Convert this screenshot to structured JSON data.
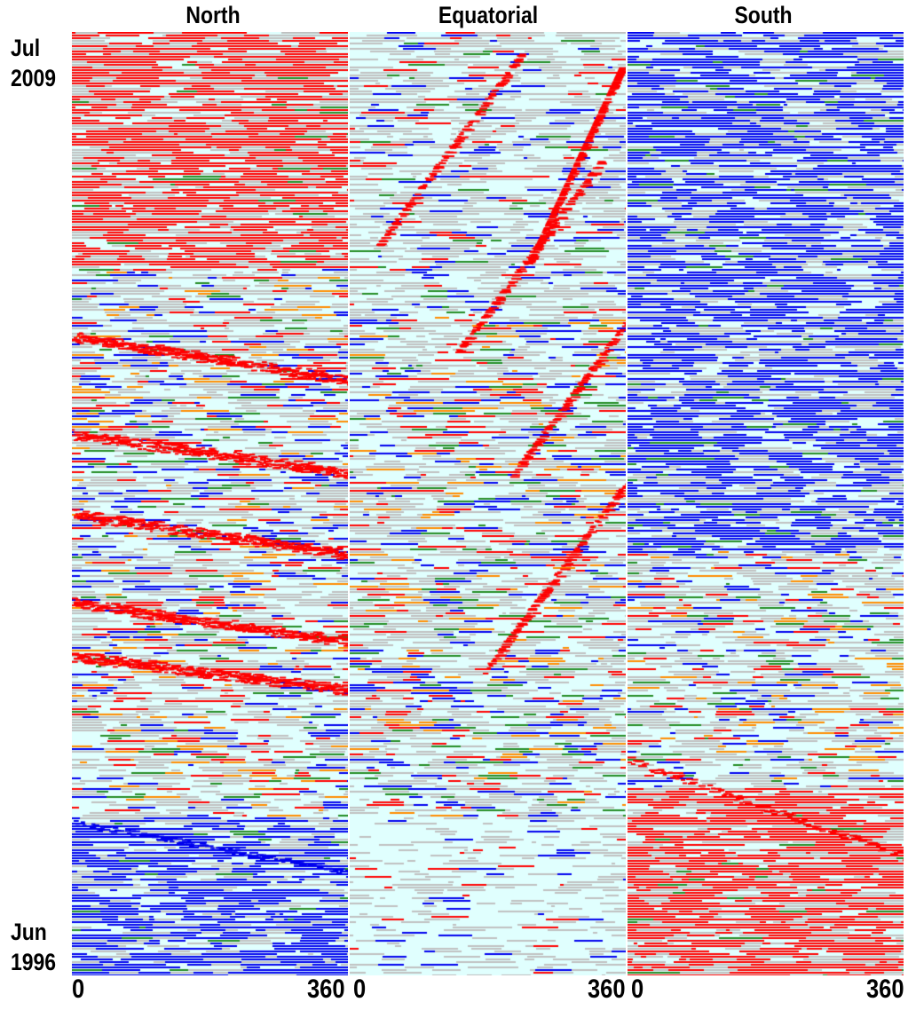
{
  "chart_data": [
    {
      "type": "heatmap",
      "title": "North",
      "xlim": [
        0,
        360
      ],
      "x_ticks": [
        "0",
        "360"
      ],
      "y_range": [
        "Jun 1996",
        "Jul 2009"
      ],
      "colors": {
        "red": "#ff0000",
        "blue": "#0000ee",
        "gray": "#c0c0c0",
        "background": "#e0fffe",
        "green": "#228b22",
        "orange": "#ff8c00"
      },
      "regions": [
        {
          "time_start": 0.0,
          "time_end": 0.17,
          "dominant": "blue"
        },
        {
          "time_start": 0.17,
          "time_end": 0.75,
          "dominant": "mixed",
          "features": "diagonal red bands drifting in longitude"
        },
        {
          "time_start": 0.75,
          "time_end": 1.0,
          "dominant": "red"
        }
      ]
    },
    {
      "type": "heatmap",
      "title": "Equatorial",
      "xlim": [
        0,
        360
      ],
      "x_ticks": [
        "0",
        "360"
      ],
      "y_range": [
        "Jun 1996",
        "Jul 2009"
      ],
      "colors": {
        "red": "#ff0000",
        "blue": "#0000ee",
        "gray": "#c0c0c0",
        "background": "#e0fffe",
        "green": "#228b22",
        "orange": "#ff8c00"
      },
      "regions": [
        {
          "time_start": 0.0,
          "time_end": 0.17,
          "dominant": "background"
        },
        {
          "time_start": 0.17,
          "time_end": 0.7,
          "dominant": "mixed",
          "features": "scattered red, blue and orange streaks"
        },
        {
          "time_start": 0.7,
          "time_end": 1.0,
          "dominant": "gray",
          "features": "diagonal red bands"
        }
      ]
    },
    {
      "type": "heatmap",
      "title": "South",
      "xlim": [
        0,
        360
      ],
      "x_ticks": [
        "0",
        "360"
      ],
      "y_range": [
        "Jun 1996",
        "Jul 2009"
      ],
      "colors": {
        "red": "#ff0000",
        "blue": "#0000ee",
        "gray": "#c0c0c0",
        "background": "#e0fffe",
        "green": "#228b22",
        "orange": "#ff8c00"
      },
      "regions": [
        {
          "time_start": 0.0,
          "time_end": 0.2,
          "dominant": "red"
        },
        {
          "time_start": 0.2,
          "time_end": 0.45,
          "dominant": "mixed"
        },
        {
          "time_start": 0.45,
          "time_end": 1.0,
          "dominant": "blue"
        }
      ]
    }
  ],
  "labels": {
    "top_month": "Jul",
    "top_year": "2009",
    "bottom_month": "Jun",
    "bottom_year": "1996"
  }
}
